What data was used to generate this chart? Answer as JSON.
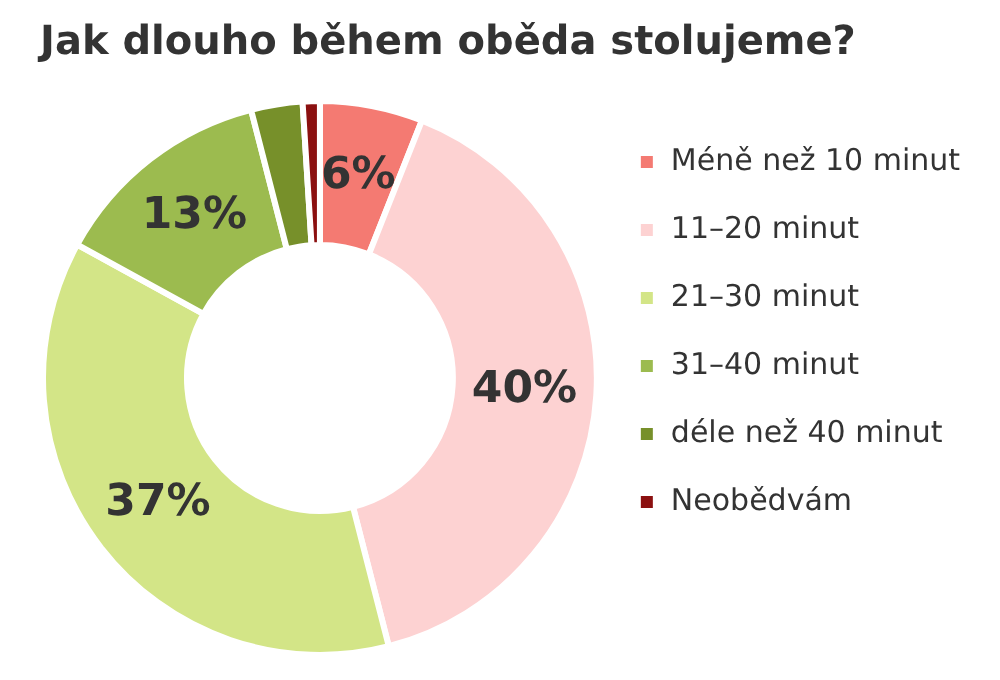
{
  "chart_data": {
    "type": "donut",
    "title": "Jak dlouho během oběda stolujeme?",
    "categories": [
      "Méně než 10 minut",
      "11–20 minut",
      "21–30 minut",
      "31–40 minut",
      "déle než 40 minut",
      "Neobědvám"
    ],
    "values": [
      6,
      40,
      37,
      13,
      3,
      1
    ],
    "colors": [
      "#f47a72",
      "#fdd2d2",
      "#d3e587",
      "#9cbb4f",
      "#77902a",
      "#8b1010"
    ],
    "value_labels": [
      "6%",
      "40%",
      "37%",
      "13%",
      null,
      null
    ],
    "legend": "right"
  }
}
